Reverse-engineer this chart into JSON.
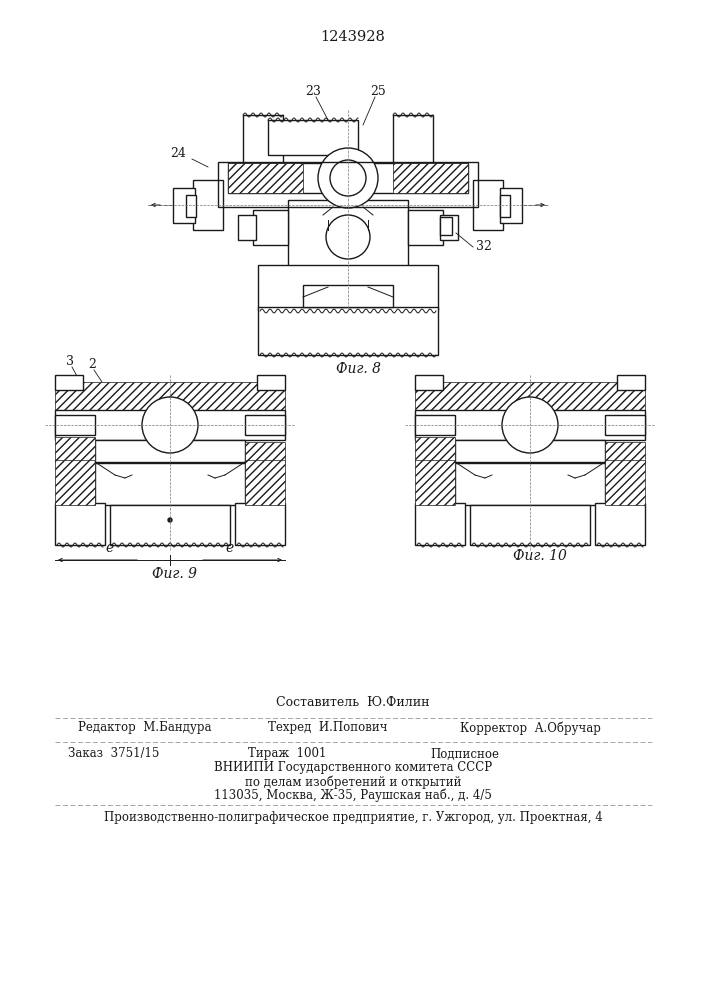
{
  "patent_number": "1243928",
  "line_color": "#1a1a1a",
  "fig8_label": "Фиг. 8",
  "fig9_label": "Фиг. 9",
  "fig10_label": "Фиг. 10",
  "label_23": "23",
  "label_24": "24",
  "label_25": "25",
  "label_32": "32",
  "label_3": "3",
  "label_2": "2",
  "label_e": "e",
  "footer_composer": "Составитель  Ю.Филин",
  "footer_editor": "Редактор  М.Бандура",
  "footer_techred": "Техред  И.Попович",
  "footer_corrector": "Корректор  А.Обручар",
  "footer_order": "Заказ  3751/15",
  "footer_print": "Тираж  1001",
  "footer_signed": "Подписное",
  "footer_vniiipi": "ВНИИПИ Государственного комитета СССР",
  "footer_affairs": "по делам изобретений и открытий",
  "footer_address": "113035, Москва, Ж-35, Раушская наб., д. 4/5",
  "footer_enterprise": "Производственно-полиграфическое предприятие, г. Ужгород, ул. Проектная, 4"
}
